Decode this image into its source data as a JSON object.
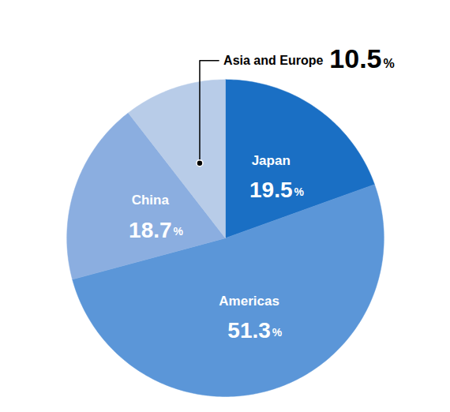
{
  "chart_data": {
    "type": "pie",
    "categories": [
      "Japan",
      "Americas",
      "China",
      "Asia and Europe"
    ],
    "values": [
      19.5,
      51.3,
      18.7,
      10.5
    ],
    "colors": [
      "#1A6FC4",
      "#5B96D8",
      "#8BAEE0",
      "#B8CCE8"
    ],
    "data_labels": true,
    "value_labels": [
      "19.5%",
      "51.3%",
      "18.7%",
      "10.5%"
    ]
  }
}
